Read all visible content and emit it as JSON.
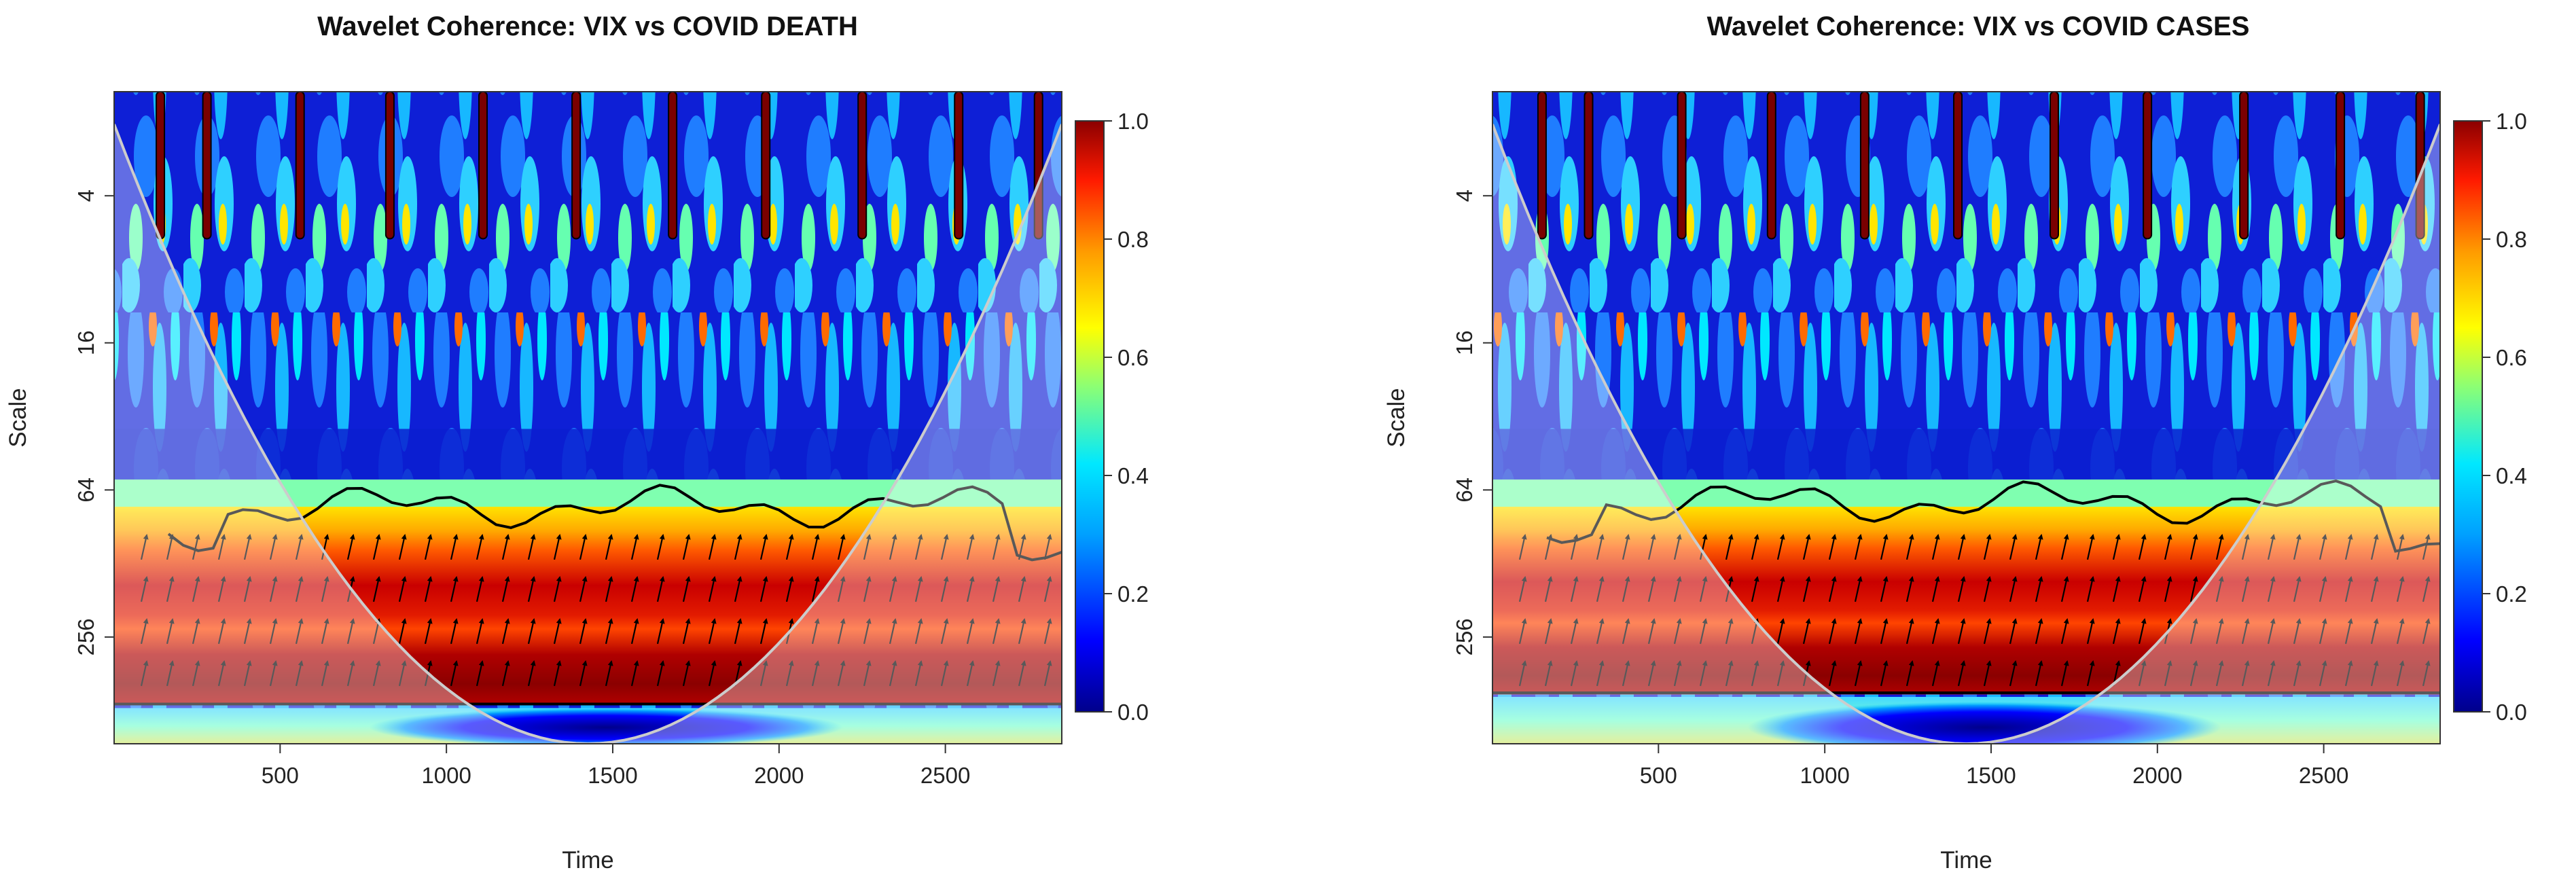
{
  "chart_data": [
    {
      "type": "heatmap",
      "subtype": "wavelet-coherence",
      "title": "Wavelet Coherence: VIX vs COVID DEATH",
      "xlabel": "Time",
      "ylabel": "Scale",
      "xlim": [
        1,
        2850
      ],
      "x_ticks": [
        500,
        1000,
        1500,
        2000,
        2500
      ],
      "y_ticks": [
        4,
        16,
        64,
        256
      ],
      "y_scale": "log2",
      "ylim": [
        1.5,
        700
      ],
      "colorbar": {
        "range": [
          0.0,
          1.0
        ],
        "ticks": [
          "0.0",
          "0.2",
          "0.4",
          "0.6",
          "0.8",
          "1.0"
        ]
      },
      "features": {
        "high_coherence_band_scale": [
          90,
          480
        ],
        "band_contour_top_scale": 75,
        "low_coherence_band_scale": [
          500,
          700
        ],
        "cone_of_influence": "parabolic, grey outline, shaded outside",
        "phase_arrows": "mostly pointing up-right within high coherence band"
      }
    },
    {
      "type": "heatmap",
      "subtype": "wavelet-coherence",
      "title": "Wavelet Coherence: VIX vs COVID CASES",
      "xlabel": "Time",
      "ylabel": "Scale",
      "xlim": [
        1,
        2850
      ],
      "x_ticks": [
        500,
        1000,
        1500,
        2000,
        2500
      ],
      "y_ticks": [
        4,
        16,
        64,
        256
      ],
      "y_scale": "log2",
      "ylim": [
        1.5,
        700
      ],
      "colorbar": {
        "range": [
          0.0,
          1.0
        ],
        "ticks": [
          "0.0",
          "0.2",
          "0.4",
          "0.6",
          "0.8",
          "1.0"
        ]
      },
      "features": {
        "high_coherence_band_scale": [
          90,
          440
        ],
        "band_contour_top_scale": 72,
        "low_coherence_band_scale": [
          450,
          700
        ],
        "cone_of_influence": "parabolic, grey outline, shaded outside",
        "phase_arrows": "mostly pointing up-right within high coherence band"
      }
    }
  ]
}
